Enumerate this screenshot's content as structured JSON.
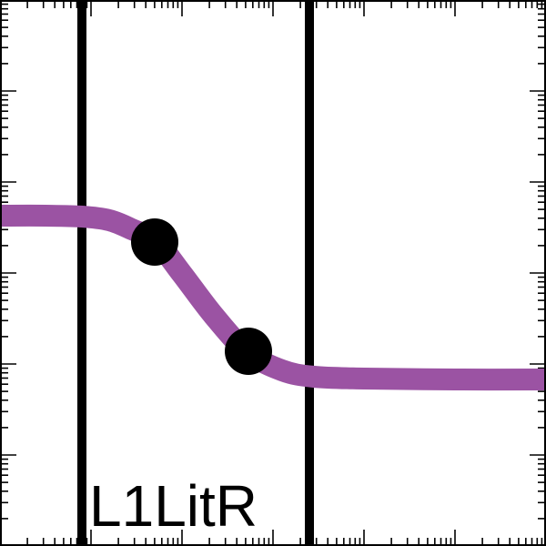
{
  "chart_data": {
    "type": "line",
    "title": "",
    "xlabel": "",
    "ylabel": "",
    "label": "L1LitR",
    "xlim": [
      0,
      6
    ],
    "ylim": [
      0,
      6
    ],
    "grid": false,
    "series": [
      {
        "color": "#9b53a3",
        "points": [
          [
            0.0,
            3.63
          ],
          [
            0.5,
            3.63
          ],
          [
            0.9,
            3.62
          ],
          [
            1.2,
            3.58
          ],
          [
            1.45,
            3.48
          ],
          [
            1.72,
            3.34
          ],
          [
            2.0,
            2.99
          ],
          [
            2.35,
            2.53
          ],
          [
            2.72,
            2.13
          ],
          [
            3.1,
            1.93
          ],
          [
            3.45,
            1.86
          ],
          [
            4.0,
            1.84
          ],
          [
            5.0,
            1.83
          ],
          [
            6.0,
            1.83
          ]
        ]
      }
    ],
    "markers": [
      {
        "x": 1.7,
        "y": 3.34,
        "color": "#000000"
      },
      {
        "x": 2.73,
        "y": 2.14,
        "color": "#000000"
      }
    ],
    "vlines": [
      {
        "x": 0.9,
        "color": "#000000"
      },
      {
        "x": 3.4,
        "color": "#000000"
      }
    ]
  }
}
